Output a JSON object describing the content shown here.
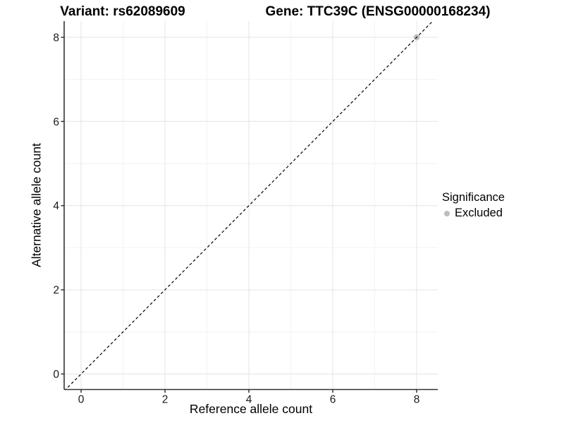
{
  "header": {
    "left_title": "Variant: rs62089609",
    "right_title": "Gene: TTC39C (ENSG00000168234)"
  },
  "axes": {
    "x_label": "Reference allele count",
    "y_label": "Alternative allele count"
  },
  "legend": {
    "title": "Significance",
    "items": [
      {
        "label": "Excluded",
        "color": "#bdbdbd"
      }
    ]
  },
  "colors": {
    "background": "#ffffff",
    "axis_line": "#333333",
    "grid_major": "#e4e4e4",
    "grid_minor": "#f2f2f2",
    "tick_text": "#1a1a1a",
    "reference_line": "#000000"
  },
  "chart_data": {
    "type": "scatter",
    "title": "Variant: rs62089609 | Gene: TTC39C (ENSG00000168234)",
    "xlabel": "Reference allele count",
    "ylabel": "Alternative allele count",
    "xlim": [
      -0.45,
      8.5
    ],
    "ylim": [
      -0.4,
      8.4
    ],
    "x_major_ticks": [
      0,
      2,
      4,
      6,
      8
    ],
    "y_major_ticks": [
      0,
      2,
      4,
      6,
      8
    ],
    "x_minor_ticks": [
      1,
      3,
      5,
      7
    ],
    "y_minor_ticks": [
      1,
      3,
      5,
      7
    ],
    "grid": true,
    "legend_position": "right",
    "series": [
      {
        "name": "Excluded",
        "color": "#bdbdbd",
        "points": [
          {
            "x": 8,
            "y": 8
          }
        ]
      }
    ],
    "reference_line": {
      "slope": 1,
      "intercept": 0,
      "style": "dashed",
      "color": "#000000"
    }
  }
}
